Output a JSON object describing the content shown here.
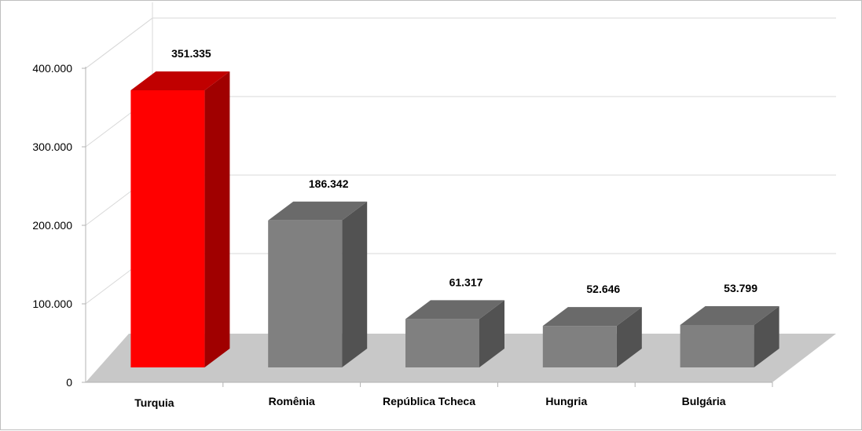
{
  "chart_data": {
    "type": "bar",
    "categories": [
      "Turquia",
      "Romênia",
      "República Tcheca",
      "Hungria",
      "Bulgária"
    ],
    "values": [
      351335,
      186342,
      61317,
      52646,
      53799
    ],
    "value_labels": [
      "351.335",
      "186.342",
      "61.317",
      "52.646",
      "53.799"
    ],
    "y_ticks": [
      0,
      100000,
      200000,
      300000,
      400000
    ],
    "y_tick_labels": [
      "0",
      "100.000",
      "200.000",
      "300.000",
      "400.000"
    ],
    "ylim": [
      0,
      400000
    ],
    "grid": true,
    "three_d": true,
    "title": "",
    "xlabel": "",
    "ylabel": "",
    "highlight_index": 0,
    "colors": {
      "highlight_front": "#ff0000",
      "highlight_top": "#c00000",
      "highlight_side": "#a00000",
      "highlight_label": "#c00000",
      "bar_front": "#808080",
      "bar_top": "#6a6a6a",
      "bar_side": "#525252",
      "floor": "#c8c8c8",
      "grid": "#d9d9d9"
    }
  }
}
